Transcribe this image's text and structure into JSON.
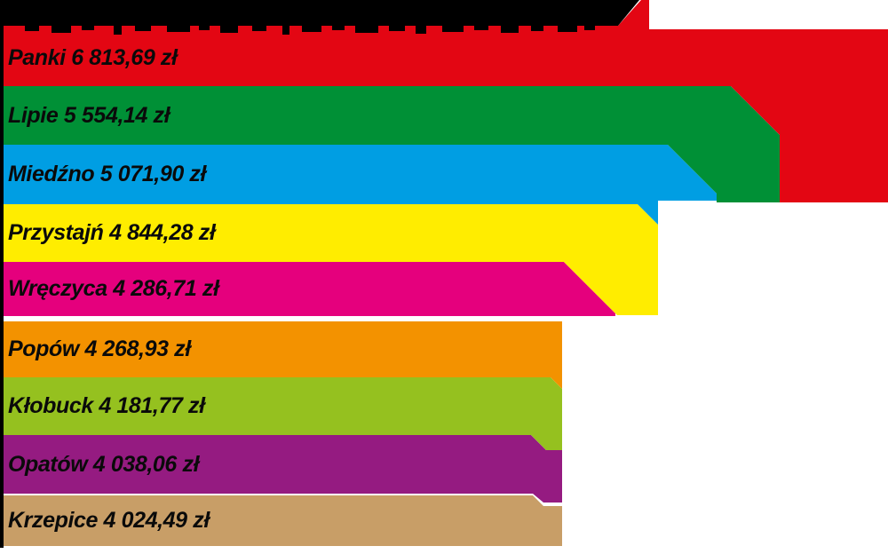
{
  "header": {
    "title": ""
  },
  "chart_data": {
    "type": "bar",
    "orientation": "horizontal",
    "title": "",
    "unit": "zł",
    "value_labels_inline": true,
    "legend": "none",
    "axes": "none",
    "categories": [
      "Panki",
      "Lipie",
      "Miedźno",
      "Przystajń",
      "Wręczyca",
      "Popów",
      "Kłobuck",
      "Opatów",
      "Krzepice"
    ],
    "values": [
      6813.69,
      5554.14,
      5071.9,
      4844.28,
      4286.71,
      4268.93,
      4181.77,
      4038.06,
      4024.49
    ],
    "labels": [
      "Panki 6 813,69 zł",
      "Lipie 5 554,14 zł",
      "Miedźno 5 071,90 zł",
      "Przystajń 4 844,28 zł",
      "Wręczyca 4 286,71 zł",
      "Popów 4 268,93 zł",
      "Kłobuck 4 181,77 zł",
      "Opatów 4 038,06 zł",
      "Krzepice 4 024,49 zł"
    ],
    "colors": [
      "#e30613",
      "#009036",
      "#009ee3",
      "#ffed00",
      "#e5007d",
      "#f39200",
      "#95c11f",
      "#951b81",
      "#c89e67"
    ],
    "header_bar_color": "#000000",
    "label_text_color": "#0a0a0a"
  }
}
